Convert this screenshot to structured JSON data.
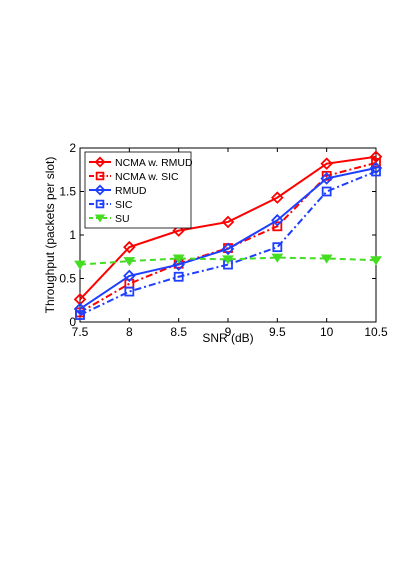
{
  "chart_data": {
    "type": "line",
    "xlabel": "SNR (dB)",
    "ylabel": "Throughput (packets per slot)",
    "xlim": [
      7.5,
      10.5
    ],
    "ylim": [
      0,
      2
    ],
    "x": [
      7.5,
      8,
      8.5,
      9,
      9.5,
      10,
      10.5
    ],
    "x_ticks": [
      "7.5",
      "8",
      "8.5",
      "9",
      "9.5",
      "10",
      "10.5"
    ],
    "y_ticks": [
      "0",
      "0.5",
      "1",
      "1.5",
      "2"
    ],
    "grid": false,
    "legend_position": "top-left",
    "series": [
      {
        "name": "NCMA w. RMUD",
        "values": [
          0.26,
          0.86,
          1.05,
          1.15,
          1.43,
          1.82,
          1.9
        ],
        "color": "#ff0000",
        "line_style": "solid",
        "marker": "diamond"
      },
      {
        "name": "NCMA w. SIC",
        "values": [
          0.11,
          0.44,
          0.67,
          0.85,
          1.1,
          1.68,
          1.83
        ],
        "color": "#ff0000",
        "line_style": "dashdot",
        "marker": "square"
      },
      {
        "name": "RMUD",
        "values": [
          0.15,
          0.53,
          0.66,
          0.84,
          1.17,
          1.65,
          1.77
        ],
        "color": "#1f3fff",
        "line_style": "solid",
        "marker": "diamond"
      },
      {
        "name": "SIC",
        "values": [
          0.08,
          0.35,
          0.52,
          0.66,
          0.86,
          1.5,
          1.73
        ],
        "color": "#1f3fff",
        "line_style": "dashdot",
        "marker": "square"
      },
      {
        "name": "SU",
        "values": [
          0.66,
          0.7,
          0.73,
          0.72,
          0.74,
          0.73,
          0.71
        ],
        "color": "#44dd22",
        "line_style": "dashed",
        "marker": "triangle-down"
      }
    ]
  }
}
